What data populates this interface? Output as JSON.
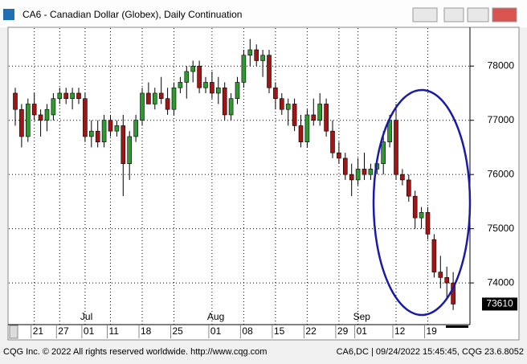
{
  "window": {
    "title": "CA6 - Canadian Dollar (Globex), Daily Continuation",
    "footer_left": "CQG Inc. © 2022 All rights reserved worldwide. http://www.cqg.com",
    "footer_right": "CA6,DC | 09/24/2022 15:45:45, CQG 23.6.8052"
  },
  "chart_data": {
    "type": "candlestick",
    "categories": [
      null,
      null,
      null,
      "21",
      null,
      null,
      null,
      "27",
      null,
      null,
      null,
      "01",
      null,
      null,
      null,
      "11",
      null,
      null,
      null,
      null,
      "18",
      null,
      null,
      null,
      null,
      "25",
      null,
      null,
      null,
      null,
      null,
      "01",
      null,
      null,
      null,
      null,
      "08",
      null,
      null,
      null,
      null,
      "15",
      null,
      null,
      null,
      null,
      "22",
      null,
      null,
      null,
      null,
      "29",
      null,
      null,
      "01",
      null,
      null,
      null,
      null,
      null,
      "12",
      null,
      null,
      null,
      null,
      "19",
      null,
      null,
      null,
      null
    ],
    "month_labels": [
      {
        "label": "Jul",
        "index": 11
      },
      {
        "label": "Aug",
        "index": 31
      },
      {
        "label": "Sep",
        "index": 54
      }
    ],
    "open": [
      77500,
      77200,
      76700,
      77300,
      77100,
      77000,
      77100,
      77400,
      77500,
      77400,
      77500,
      77400,
      76700,
      76800,
      76600,
      77000,
      76800,
      76900,
      76200,
      76700,
      77000,
      77500,
      77300,
      77500,
      77400,
      77200,
      77600,
      77700,
      77900,
      78000,
      77600,
      77700,
      77500,
      77600,
      77100,
      77400,
      77700,
      78200,
      78300,
      78100,
      78200,
      77600,
      77400,
      77200,
      77300,
      76900,
      76600,
      77100,
      77000,
      77300,
      76800,
      76400,
      76300,
      76000,
      75900,
      76100,
      76000,
      76100,
      76200,
      76600,
      77000,
      76000,
      75900,
      75600,
      75200,
      75300,
      74800,
      74200,
      74100,
      74000
    ],
    "high": [
      77600,
      77300,
      77400,
      77500,
      77200,
      77300,
      77500,
      77600,
      77600,
      77600,
      77600,
      77500,
      77000,
      77000,
      77100,
      77100,
      77000,
      77100,
      76800,
      77100,
      77600,
      77700,
      77600,
      77800,
      77600,
      77700,
      77800,
      78000,
      78100,
      78100,
      77800,
      77900,
      77800,
      77700,
      77500,
      77800,
      78300,
      78500,
      78400,
      78300,
      78300,
      77700,
      77500,
      77400,
      77400,
      77100,
      77200,
      77400,
      77500,
      77400,
      77000,
      76600,
      76400,
      76200,
      76300,
      76400,
      76200,
      76300,
      76800,
      77100,
      77300,
      76100,
      76000,
      75700,
      75400,
      75400,
      74900,
      74500,
      74300,
      74200
    ],
    "low": [
      76900,
      76500,
      76600,
      77000,
      76700,
      76800,
      77000,
      77300,
      77300,
      77200,
      77300,
      76600,
      76500,
      76500,
      76500,
      76700,
      76700,
      75600,
      75900,
      76600,
      76900,
      77300,
      77200,
      77300,
      77100,
      77100,
      77500,
      77400,
      77700,
      77500,
      77500,
      77400,
      77300,
      77000,
      77000,
      77300,
      77600,
      78000,
      78000,
      77800,
      77500,
      77200,
      77100,
      76900,
      76800,
      76500,
      76500,
      76900,
      76900,
      76700,
      76300,
      76200,
      75900,
      75600,
      75800,
      75900,
      75900,
      76000,
      76000,
      76500,
      75900,
      75800,
      75500,
      75000,
      75000,
      74800,
      74100,
      73900,
      73700,
      73500
    ],
    "close": [
      77200,
      76700,
      77300,
      77100,
      77000,
      77200,
      77400,
      77500,
      77400,
      77500,
      77400,
      76700,
      76800,
      76600,
      77000,
      76800,
      76900,
      76200,
      76700,
      77000,
      77500,
      77300,
      77500,
      77400,
      77200,
      77600,
      77700,
      77900,
      78000,
      77600,
      77700,
      77500,
      77600,
      77100,
      77400,
      77700,
      78200,
      78300,
      78100,
      78200,
      77600,
      77400,
      77200,
      77300,
      76900,
      76600,
      77100,
      77000,
      77300,
      76800,
      76400,
      76300,
      76000,
      75900,
      76100,
      76000,
      76100,
      76200,
      76600,
      77000,
      76000,
      75900,
      75600,
      75200,
      75300,
      74900,
      74200,
      74100,
      74000,
      73610
    ],
    "up_color": "#2f9a2f",
    "down_color": "#a31515",
    "ylim": [
      73290,
      78700
    ],
    "yticks": [
      74000,
      75000,
      76000,
      77000,
      78000
    ],
    "grid": true
  }
}
